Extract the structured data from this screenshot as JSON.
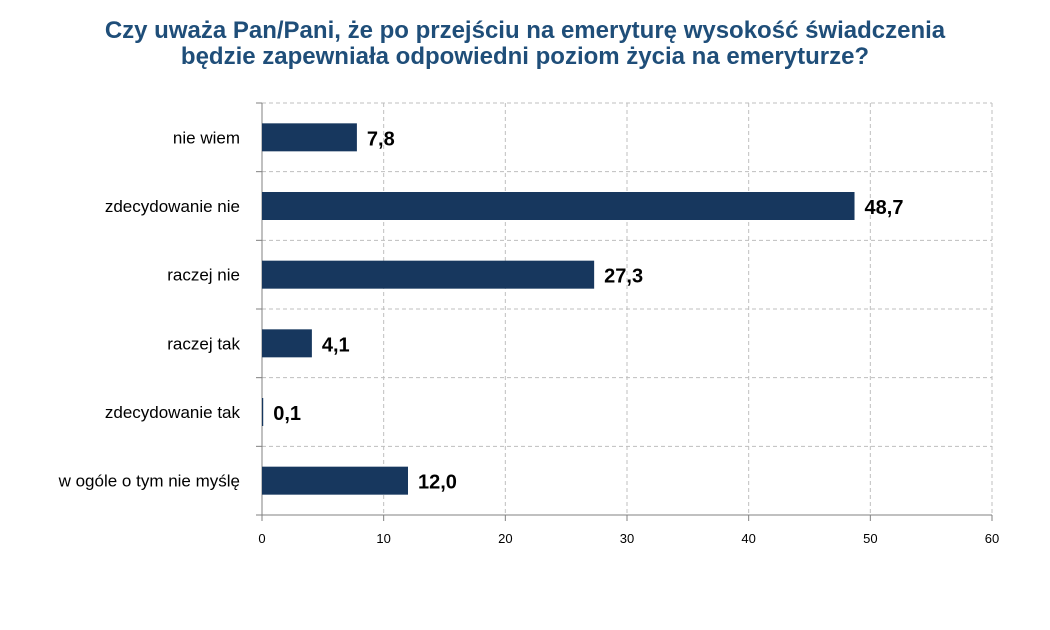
{
  "chart_data": {
    "type": "bar",
    "orientation": "horizontal",
    "title": "Czy uważa Pan/Pani, że po przejściu na emeryturę wysokość świadczenia będzie zapewniała odpowiedni poziom życia na emeryturze?",
    "title_lines": [
      "Czy uważa Pan/Pani, że po przejściu na emeryturę wysokość świadczenia",
      "będzie zapewniała odpowiedni poziom życia na emeryturze?"
    ],
    "categories": [
      "nie wiem",
      "zdecydowanie nie",
      "raczej nie",
      "raczej tak",
      "zdecydowanie tak",
      "w ogóle o tym nie myślę"
    ],
    "values": [
      7.8,
      48.7,
      27.3,
      4.1,
      0.1,
      12.0
    ],
    "value_labels": [
      "7,8",
      "48,7",
      "27,3",
      "4,1",
      "0,1",
      "12,0"
    ],
    "xlim": [
      0,
      60
    ],
    "x_ticks": [
      0,
      10,
      20,
      30,
      40,
      50,
      60
    ],
    "x_tick_labels": [
      "0",
      "10",
      "20",
      "30",
      "40",
      "50",
      "60"
    ],
    "grid": true,
    "legend": "none",
    "bar_color": "#17375E",
    "title_color": "#1F4E79",
    "grid_color": "#BFBFBF"
  }
}
